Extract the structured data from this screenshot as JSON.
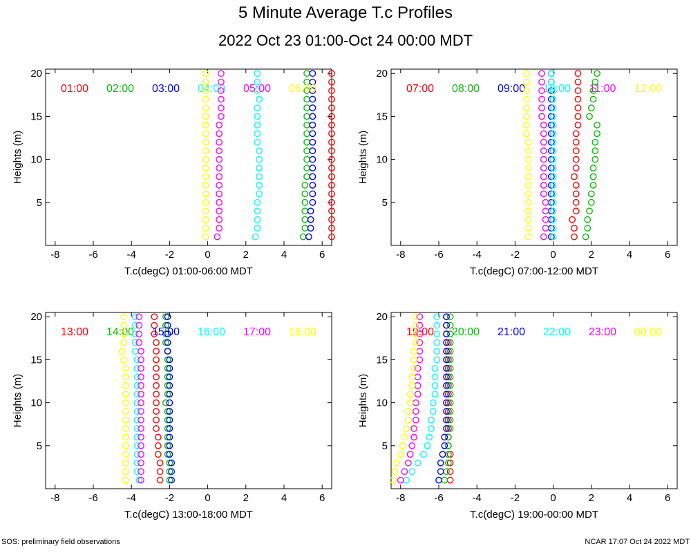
{
  "title": "5 Minute Average T.c Profiles",
  "subtitle": "2022 Oct 23 01:00-Oct 24 00:00 MDT",
  "footer": {
    "left": "SOS: preliminary field observations",
    "right": "NCAR 17:07 Oct 24 2022 MDT"
  },
  "colors": [
    "#ff0000",
    "#00c000",
    "#0000ff",
    "#00ffff",
    "#ff00ff",
    "#ffff00"
  ],
  "chart_data": [
    {
      "type": "scatter",
      "xlabel": "T.c(degC) 01:00-06:00 MDT",
      "ylabel": "Heights (m)",
      "xlim": [
        -8.5,
        6.5
      ],
      "ylim": [
        0,
        20.5
      ],
      "xticks": [
        "-8",
        "-6",
        "-4",
        "-2",
        "0",
        "2",
        "4",
        "6"
      ],
      "yticks": [
        "5",
        "10",
        "15",
        "20"
      ],
      "series": [
        {
          "name": "01:00",
          "x": [
            6.5,
            6.5,
            6.5,
            6.5,
            6.5,
            6.5,
            6.5,
            6.5,
            6.5,
            6.5,
            6.5,
            6.5,
            6.5,
            6.5,
            6.5,
            6.5,
            6.5,
            6.5,
            6.5,
            6.5
          ]
        },
        {
          "name": "02:00",
          "x": [
            5.0,
            5.1,
            5.1,
            5.1,
            5.1,
            5.1,
            5.1,
            5.2,
            5.2,
            5.2,
            5.2,
            5.2,
            5.2,
            5.2,
            5.2,
            5.2,
            5.2,
            5.2,
            5.2,
            5.2
          ]
        },
        {
          "name": "03:00",
          "x": [
            5.3,
            5.4,
            5.4,
            5.4,
            5.5,
            5.5,
            5.5,
            5.5,
            5.5,
            5.5,
            5.5,
            5.5,
            5.5,
            5.5,
            5.5,
            5.5,
            5.5,
            5.5,
            5.5,
            5.5
          ]
        },
        {
          "name": "04:00",
          "x": [
            2.5,
            2.6,
            2.6,
            2.6,
            2.6,
            2.7,
            2.7,
            2.7,
            2.7,
            2.7,
            2.7,
            2.6,
            2.6,
            2.6,
            2.6,
            2.6,
            2.7,
            2.6,
            2.6,
            2.6
          ]
        },
        {
          "name": "05:00",
          "x": [
            0.5,
            0.6,
            0.6,
            0.6,
            0.6,
            0.6,
            0.6,
            0.6,
            0.6,
            0.6,
            0.6,
            0.6,
            0.6,
            0.6,
            0.7,
            0.7,
            0.7,
            0.7,
            0.7,
            0.7
          ]
        },
        {
          "name": "06:00",
          "x": [
            -0.1,
            -0.1,
            -0.1,
            -0.1,
            -0.1,
            -0.1,
            -0.1,
            -0.1,
            -0.1,
            -0.1,
            -0.1,
            -0.1,
            -0.1,
            -0.1,
            -0.1,
            -0.1,
            -0.1,
            -0.1,
            -0.1,
            -0.1
          ]
        }
      ]
    },
    {
      "type": "scatter",
      "xlabel": "T.c(degC) 07:00-12:00 MDT",
      "ylabel": "Heights (m)",
      "xlim": [
        -8.5,
        6.5
      ],
      "ylim": [
        0,
        20.5
      ],
      "xticks": [
        "-8",
        "-6",
        "-4",
        "-2",
        "0",
        "2",
        "4",
        "6"
      ],
      "yticks": [
        "5",
        "10",
        "15",
        "20"
      ],
      "series": [
        {
          "name": "07:00",
          "x": [
            1.1,
            1.1,
            1.0,
            1.2,
            1.2,
            1.2,
            1.2,
            1.1,
            1.2,
            1.2,
            1.2,
            1.2,
            1.2,
            1.3,
            1.3,
            1.3,
            1.3,
            1.3,
            1.3,
            1.3
          ]
        },
        {
          "name": "08:00",
          "x": [
            1.7,
            1.8,
            1.8,
            1.9,
            2.0,
            2.0,
            2.1,
            2.1,
            2.1,
            2.2,
            2.2,
            2.2,
            2.3,
            2.3,
            1.9,
            2.0,
            2.1,
            2.1,
            2.2,
            2.3
          ]
        },
        {
          "name": "09:00",
          "x": [
            -0.1,
            -0.1,
            -0.1,
            -0.1,
            -0.1,
            -0.1,
            -0.1,
            -0.1,
            -0.1,
            -0.1,
            -0.1,
            -0.1,
            -0.1,
            -0.1,
            -0.1,
            -0.1,
            -0.1,
            -0.1,
            -0.1,
            -0.1
          ]
        },
        {
          "name": "10:00",
          "x": [
            0.0,
            0.0,
            0.0,
            0.0,
            0.0,
            0.0,
            0.0,
            0.0,
            0.0,
            0.0,
            0.0,
            0.0,
            0.0,
            0.0,
            0.0,
            0.0,
            0.0,
            0.0,
            -0.1,
            -0.1
          ]
        },
        {
          "name": "11:00",
          "x": [
            -0.5,
            -0.4,
            -0.4,
            -0.4,
            -0.4,
            -0.5,
            -0.5,
            -0.5,
            -0.5,
            -0.5,
            -0.5,
            -0.5,
            -0.5,
            -0.5,
            -0.6,
            -0.6,
            -0.6,
            -0.6,
            -0.6,
            -0.6
          ]
        },
        {
          "name": "12:00",
          "x": [
            -1.3,
            -1.3,
            -1.3,
            -1.3,
            -1.3,
            -1.3,
            -1.3,
            -1.3,
            -1.3,
            -1.3,
            -1.3,
            -1.3,
            -1.4,
            -1.4,
            -1.4,
            -1.4,
            -1.4,
            -1.4,
            -1.4,
            -1.4
          ]
        }
      ]
    },
    {
      "type": "scatter",
      "xlabel": "T.c(degC) 13:00-18:00 MDT",
      "ylabel": "Heights (m)",
      "xlim": [
        -8.5,
        6.5
      ],
      "ylim": [
        0,
        20.5
      ],
      "xticks": [
        "-8",
        "-6",
        "-4",
        "-2",
        "0",
        "2",
        "4",
        "6"
      ],
      "yticks": [
        "5",
        "10",
        "15",
        "20"
      ],
      "series": [
        {
          "name": "13:00",
          "x": [
            -2.5,
            -2.5,
            -2.5,
            -2.6,
            -2.6,
            -2.6,
            -2.7,
            -2.7,
            -2.7,
            -2.7,
            -2.7,
            -2.7,
            -2.7,
            -2.7,
            -2.7,
            -2.7,
            -2.7,
            -2.8,
            -2.8,
            -2.8
          ]
        },
        {
          "name": "14:00",
          "x": [
            -2.0,
            -2.0,
            -2.0,
            -2.1,
            -2.1,
            -2.1,
            -2.1,
            -2.1,
            -2.1,
            -2.2,
            -2.1,
            -2.1,
            -2.1,
            -2.1,
            -2.1,
            -2.1,
            -2.2,
            -2.2,
            -2.2,
            -2.2
          ]
        },
        {
          "name": "15:00",
          "x": [
            -1.9,
            -1.9,
            -1.9,
            -2.0,
            -2.0,
            -2.0,
            -2.0,
            -2.0,
            -2.0,
            -2.0,
            -2.0,
            -2.0,
            -2.0,
            -2.0,
            -2.0,
            -2.1,
            -2.1,
            -2.1,
            -2.1,
            -2.1
          ]
        },
        {
          "name": "16:00",
          "x": [
            -3.6,
            -3.7,
            -3.7,
            -3.7,
            -3.7,
            -3.7,
            -3.7,
            -3.7,
            -3.7,
            -3.7,
            -3.7,
            -3.7,
            -3.7,
            -3.7,
            -3.7,
            -3.8,
            -3.8,
            -3.8,
            -3.8,
            -3.8
          ]
        },
        {
          "name": "17:00",
          "x": [
            -3.5,
            -3.5,
            -3.5,
            -3.5,
            -3.5,
            -3.5,
            -3.5,
            -3.5,
            -3.5,
            -3.5,
            -3.5,
            -3.5,
            -3.5,
            -3.5,
            -3.5,
            -3.5,
            -3.6,
            -3.6,
            -3.6,
            -3.6
          ]
        },
        {
          "name": "18:00",
          "x": [
            -4.3,
            -4.3,
            -4.3,
            -4.3,
            -4.3,
            -4.3,
            -4.3,
            -4.3,
            -4.3,
            -4.3,
            -4.3,
            -4.3,
            -4.3,
            -4.3,
            -4.4,
            -4.5,
            -4.4,
            -4.4,
            -4.4,
            -4.4
          ]
        }
      ]
    },
    {
      "type": "scatter",
      "xlabel": "T.c(degC) 19:00-00:00 MDT",
      "ylabel": "Heights (m)",
      "xlim": [
        -8.5,
        6.5
      ],
      "ylim": [
        0,
        20.5
      ],
      "xticks": [
        "-8",
        "-6",
        "-4",
        "-2",
        "0",
        "2",
        "4",
        "6"
      ],
      "yticks": [
        "5",
        "10",
        "15",
        "20"
      ],
      "series": [
        {
          "name": "19:00",
          "x": [
            -5.4,
            -5.4,
            -5.4,
            -5.4,
            -5.5,
            -5.5,
            -5.5,
            -5.5,
            -5.5,
            -5.5,
            -5.5,
            -5.5,
            -5.5,
            -5.5,
            -5.5,
            -5.5,
            -5.5,
            -5.6,
            -5.6,
            -5.6
          ]
        },
        {
          "name": "20:00",
          "x": [
            -5.7,
            -5.6,
            -5.5,
            -5.5,
            -5.5,
            -5.5,
            -5.4,
            -5.4,
            -5.4,
            -5.4,
            -5.4,
            -5.4,
            -5.4,
            -5.4,
            -5.4,
            -5.4,
            -5.4,
            -5.4,
            -5.4,
            -5.4
          ]
        },
        {
          "name": "21:00",
          "x": [
            -6.0,
            -5.9,
            -5.9,
            -5.8,
            -5.7,
            -5.7,
            -5.6,
            -5.6,
            -5.6,
            -5.6,
            -5.6,
            -5.6,
            -5.6,
            -5.6,
            -5.6,
            -5.6,
            -5.6,
            -5.6,
            -5.6,
            -5.6
          ]
        },
        {
          "name": "22:00",
          "x": [
            -7.7,
            -7.4,
            -7.1,
            -6.8,
            -6.6,
            -6.5,
            -6.4,
            -6.4,
            -6.3,
            -6.3,
            -6.2,
            -6.2,
            -6.2,
            -6.2,
            -6.1,
            -6.1,
            -6.1,
            -6.1,
            -6.1,
            -6.1
          ]
        },
        {
          "name": "23:00",
          "x": [
            -8.0,
            -7.8,
            -7.6,
            -7.5,
            -7.4,
            -7.3,
            -7.3,
            -7.2,
            -7.2,
            -7.2,
            -7.1,
            -7.1,
            -7.1,
            -7.1,
            -7.0,
            -7.0,
            -7.0,
            -7.0,
            -7.0,
            -7.0
          ]
        },
        {
          "name": "00:00",
          "x": [
            -8.4,
            -8.3,
            -8.2,
            -8.0,
            -7.9,
            -7.8,
            -7.7,
            -7.6,
            -7.6,
            -7.5,
            -7.5,
            -7.4,
            -7.4,
            -7.3,
            -7.3,
            -7.3,
            -7.2,
            -7.2,
            -7.2,
            -7.2
          ]
        }
      ]
    }
  ]
}
